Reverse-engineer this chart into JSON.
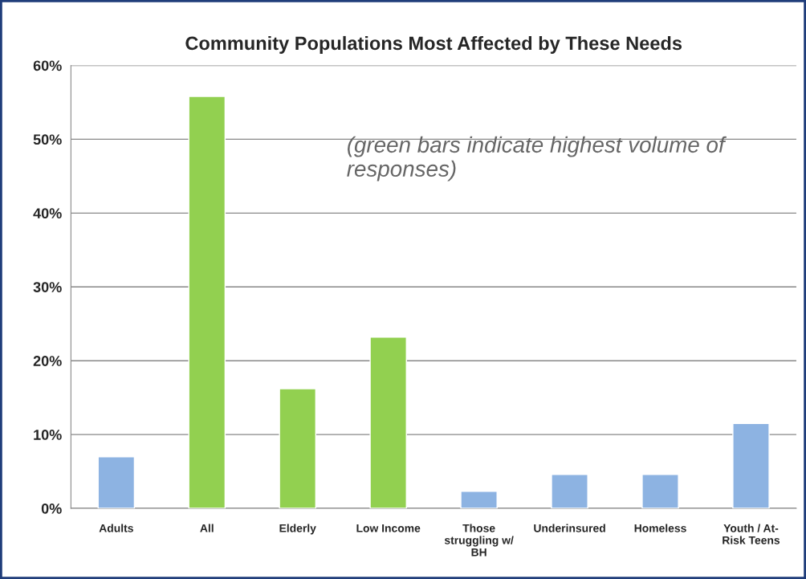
{
  "chart_data": {
    "type": "bar",
    "title": "Community Populations Most Affected by These Needs",
    "categories": [
      "Adults",
      "All",
      "Elderly",
      "Low Income",
      "Those\nstruggling w/\nBH",
      "Underinsured",
      "Homeless",
      "Youth / At-\nRisk Teens"
    ],
    "values": [
      7.0,
      55.8,
      16.2,
      23.2,
      2.3,
      4.6,
      4.6,
      11.5
    ],
    "colors": [
      "#8db3e2",
      "#92d050",
      "#92d050",
      "#92d050",
      "#8db3e2",
      "#8db3e2",
      "#8db3e2",
      "#8db3e2"
    ],
    "ylim": [
      0,
      60
    ],
    "yticks": [
      {
        "value": 0,
        "label": "0%"
      },
      {
        "value": 10,
        "label": "10%"
      },
      {
        "value": 20,
        "label": "20%"
      },
      {
        "value": 30,
        "label": "30%"
      },
      {
        "value": 40,
        "label": "40%"
      },
      {
        "value": 50,
        "label": "50%"
      },
      {
        "value": 60,
        "label": "60%"
      }
    ],
    "grid": "y",
    "annotations": [
      "(green bars indicate highest volume of responses)"
    ]
  }
}
